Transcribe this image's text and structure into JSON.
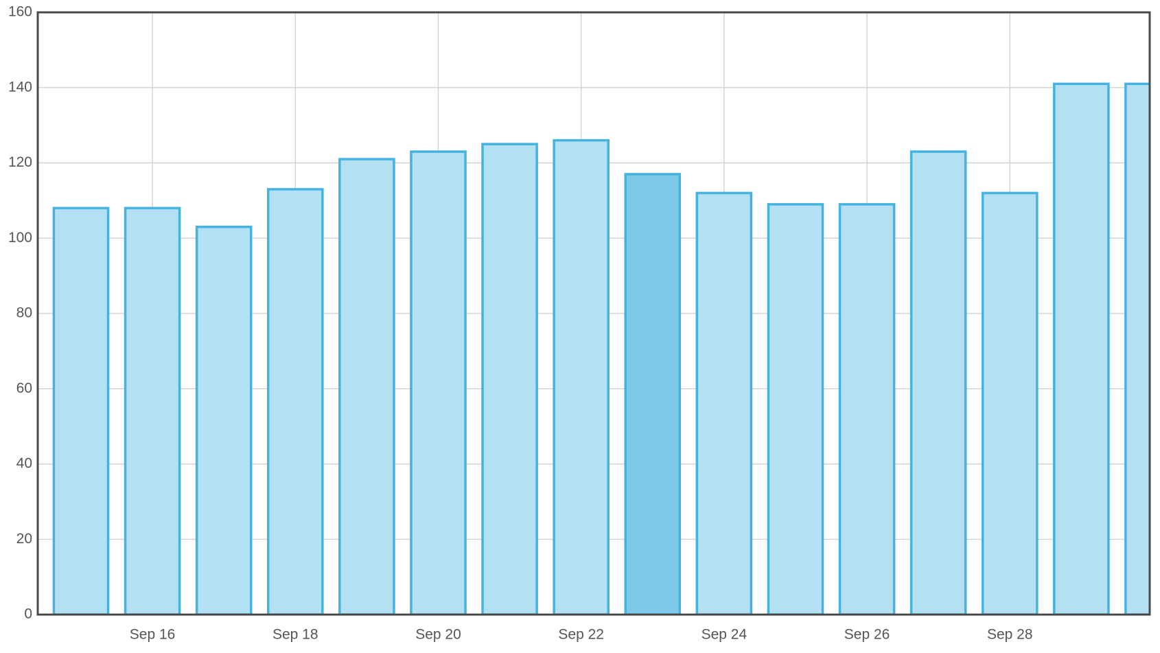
{
  "chart_data": {
    "type": "bar",
    "categories": [
      null,
      "Sep 16",
      null,
      "Sep 18",
      null,
      "Sep 20",
      null,
      "Sep 22",
      null,
      "Sep 24",
      null,
      "Sep 26",
      null,
      "Sep 28",
      null,
      null
    ],
    "values": [
      108,
      108,
      103,
      113,
      121,
      123,
      125,
      126,
      117,
      112,
      109,
      109,
      123,
      112,
      141,
      141
    ],
    "color": "#45b3e0",
    "fill_colors": [
      "#b3e0f3",
      "#b3e0f3",
      "#b3e0f3",
      "#b3e0f3",
      "#b3e0f3",
      "#b3e0f3",
      "#b3e0f3",
      "#b3e0f3",
      "#7cc9e8",
      "#b3e0f3",
      "#b3e0f3",
      "#b3e0f3",
      "#b3e0f3",
      "#b3e0f3",
      "#b3e0f3",
      "#b3e0f3"
    ],
    "ylim": [
      0,
      160
    ],
    "yticks": [
      0,
      20,
      40,
      60,
      80,
      100,
      120,
      140,
      160
    ],
    "grid": true
  }
}
